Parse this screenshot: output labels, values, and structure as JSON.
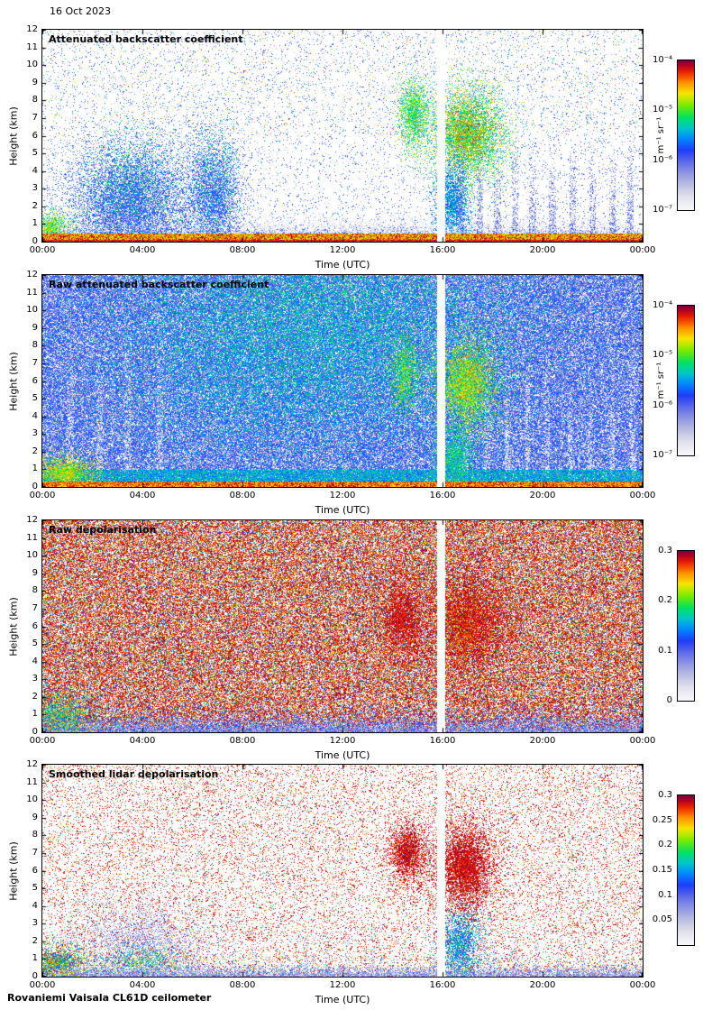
{
  "date_label": "16 Oct 2023",
  "footer": "Rovaniemi Vaisala CL61D ceilometer",
  "colormap": {
    "stops": [
      [
        0.0,
        "#f7f7fb"
      ],
      [
        0.08,
        "#e4e4ee"
      ],
      [
        0.18,
        "#b4b8e0"
      ],
      [
        0.3,
        "#6e78e6"
      ],
      [
        0.4,
        "#1e3cfa"
      ],
      [
        0.48,
        "#008cff"
      ],
      [
        0.55,
        "#00c8c8"
      ],
      [
        0.62,
        "#00e164"
      ],
      [
        0.7,
        "#78eb00"
      ],
      [
        0.78,
        "#f5e600"
      ],
      [
        0.85,
        "#ff9600"
      ],
      [
        0.92,
        "#f02800"
      ],
      [
        0.97,
        "#b4001e"
      ],
      [
        1.0,
        "#7d0046"
      ]
    ]
  },
  "chart_data": [
    {
      "type": "heatmap",
      "title": "Attenuated backscatter coefficient",
      "xlabel": "Time (UTC)",
      "ylabel": "Height (km)",
      "x_ticks": [
        "00:00",
        "04:00",
        "08:00",
        "12:00",
        "16:00",
        "20:00",
        "00:00"
      ],
      "y_ticks": [
        0,
        1,
        2,
        3,
        4,
        5,
        6,
        7,
        8,
        9,
        10,
        11,
        12
      ],
      "x_range_hours": [
        0,
        24
      ],
      "y_range_km": [
        0,
        12
      ],
      "gap_hours": [
        15.8,
        16.1
      ],
      "colorbar": {
        "scale": "log",
        "range": [
          1e-07,
          0.0001
        ],
        "unit": "m⁻¹ sr⁻¹",
        "ticks": [
          {
            "label": "10⁻⁴",
            "pos": 1
          },
          {
            "label": "10⁻⁵",
            "pos": 0.667
          },
          {
            "label": "10⁻⁶",
            "pos": 0.333
          },
          {
            "label": "10⁻⁷",
            "pos": 0
          }
        ]
      },
      "features": [
        {
          "kind": "noise",
          "density": 0.055,
          "v0": 0.16,
          "v1": 0.5,
          "h0": 0,
          "h1": 12,
          "t0": 0,
          "t1": 24
        },
        {
          "kind": "noise",
          "density": 0.012,
          "v0": 0.5,
          "v1": 0.95,
          "h0": 6,
          "h1": 12,
          "t0": 0,
          "t1": 24
        },
        {
          "kind": "band",
          "h0": 0,
          "h1": 1.5,
          "density": 0.9,
          "v0": 0.02,
          "v1": 0.14,
          "fade": true
        },
        {
          "kind": "band",
          "h0": 0,
          "h1": 0.9,
          "density": 0.5,
          "v0": 0.2,
          "v1": 0.4,
          "fade": true
        },
        {
          "kind": "blob",
          "t": 3.6,
          "h": 2.2,
          "st": 1.4,
          "sh": 1.9,
          "density": 0.8,
          "v0": 0.24,
          "v1": 0.5
        },
        {
          "kind": "blob",
          "t": 3.6,
          "h": 3.4,
          "st": 1.1,
          "sh": 1.6,
          "density": 0.15,
          "v0": 0.5,
          "v1": 0.7
        },
        {
          "kind": "blob",
          "t": 6.9,
          "h": 2.4,
          "st": 0.6,
          "sh": 2.0,
          "density": 0.75,
          "v0": 0.24,
          "v1": 0.5
        },
        {
          "kind": "blob",
          "t": 6.9,
          "h": 3.5,
          "st": 0.55,
          "sh": 1.7,
          "density": 0.12,
          "v0": 0.5,
          "v1": 0.68
        },
        {
          "kind": "blob",
          "t": 0.35,
          "h": 0.8,
          "st": 0.45,
          "sh": 0.45,
          "density": 0.9,
          "v0": 0.55,
          "v1": 0.8
        },
        {
          "kind": "blob",
          "t": 14.85,
          "h": 7.2,
          "st": 0.35,
          "sh": 1.1,
          "density": 0.95,
          "v0": 0.5,
          "v1": 0.78
        },
        {
          "kind": "blob",
          "t": 17.0,
          "h": 6.1,
          "st": 0.85,
          "sh": 1.5,
          "density": 0.97,
          "v0": 0.48,
          "v1": 0.8
        },
        {
          "kind": "blob",
          "t": 17.0,
          "h": 6.4,
          "st": 0.6,
          "sh": 1.0,
          "density": 0.3,
          "v0": 0.75,
          "v1": 0.95
        },
        {
          "kind": "blob",
          "t": 16.4,
          "h": 2.2,
          "st": 0.4,
          "sh": 1.3,
          "density": 0.9,
          "v0": 0.35,
          "v1": 0.6
        },
        {
          "kind": "streaks",
          "t_list": [
            16.7,
            17.5,
            18.2,
            18.9,
            19.6,
            20.4,
            21.2,
            22.0,
            22.8,
            23.5
          ],
          "tw": 0.13,
          "hmax": 6,
          "density": 0.5,
          "v0": 0.15,
          "v1": 0.4
        },
        {
          "kind": "band",
          "h0": 0,
          "h1": 0.45,
          "density": 1.0,
          "v0": 0.7,
          "v1": 1.0
        },
        {
          "kind": "band",
          "h0": 0,
          "h1": 0.1,
          "density": 1.0,
          "v0": 0.88,
          "v1": 1.0
        }
      ]
    },
    {
      "type": "heatmap",
      "title": "Raw attenuated backscatter coefficient",
      "xlabel": "Time (UTC)",
      "ylabel": "Height (km)",
      "x_ticks": [
        "00:00",
        "04:00",
        "08:00",
        "12:00",
        "16:00",
        "20:00",
        "00:00"
      ],
      "y_ticks": [
        0,
        1,
        2,
        3,
        4,
        5,
        6,
        7,
        8,
        9,
        10,
        11,
        12
      ],
      "x_range_hours": [
        0,
        24
      ],
      "y_range_km": [
        0,
        12
      ],
      "gap_hours": [
        15.8,
        16.1
      ],
      "colorbar": {
        "scale": "log",
        "range": [
          1e-07,
          0.0001
        ],
        "unit": "m⁻¹ sr⁻¹",
        "ticks": [
          {
            "label": "10⁻⁴",
            "pos": 1
          },
          {
            "label": "10⁻⁵",
            "pos": 0.667
          },
          {
            "label": "10⁻⁶",
            "pos": 0.333
          },
          {
            "label": "10⁻⁷",
            "pos": 0
          }
        ]
      },
      "features": [
        {
          "kind": "noise",
          "density": 0.78,
          "v0": 0.2,
          "v1": 0.48,
          "h0": 0,
          "h1": 12,
          "t0": 0,
          "t1": 24
        },
        {
          "kind": "blob",
          "t": 11,
          "h": 9.5,
          "st": 4.5,
          "sh": 3.2,
          "density": 0.45,
          "v0": 0.45,
          "v1": 0.66
        },
        {
          "kind": "blob",
          "t": 10,
          "h": 6,
          "st": 3.8,
          "sh": 2.6,
          "density": 0.25,
          "v0": 0.45,
          "v1": 0.6
        },
        {
          "kind": "streaks",
          "t_list": [
            1.1,
            2.3,
            3.4,
            4.7
          ],
          "tw": 0.12,
          "hmax": 10,
          "density": 0.45,
          "v0": 0.02,
          "v1": 0.1
        },
        {
          "kind": "streaks",
          "t_list": [
            16.9,
            17.8,
            18.6,
            19.4,
            20.2,
            21.1,
            21.9,
            22.8,
            23.6
          ],
          "tw": 0.1,
          "hmax": 9,
          "density": 0.5,
          "v0": 0.02,
          "v1": 0.1
        },
        {
          "kind": "band",
          "h0": 0.3,
          "h1": 0.95,
          "density": 0.85,
          "v0": 0.42,
          "v1": 0.62
        },
        {
          "kind": "blob",
          "t": 0.8,
          "h": 0.8,
          "st": 0.8,
          "sh": 0.55,
          "density": 1.0,
          "v0": 0.6,
          "v1": 0.85
        },
        {
          "kind": "blob",
          "t": 14.5,
          "h": 6.3,
          "st": 0.3,
          "sh": 1.2,
          "density": 0.9,
          "v0": 0.5,
          "v1": 0.78
        },
        {
          "kind": "blob",
          "t": 17.0,
          "h": 5.8,
          "st": 0.75,
          "sh": 1.5,
          "density": 1.0,
          "v0": 0.5,
          "v1": 0.8
        },
        {
          "kind": "blob",
          "t": 17.0,
          "h": 6.0,
          "st": 0.5,
          "sh": 1.0,
          "density": 0.35,
          "v0": 0.72,
          "v1": 0.9
        },
        {
          "kind": "blob",
          "t": 16.5,
          "h": 1.6,
          "st": 0.45,
          "sh": 1.1,
          "density": 1.0,
          "v0": 0.45,
          "v1": 0.7
        },
        {
          "kind": "band",
          "h0": 0,
          "h1": 0.32,
          "density": 1.0,
          "v0": 0.75,
          "v1": 1.0
        }
      ]
    },
    {
      "type": "heatmap",
      "title": "Raw depolarisation",
      "xlabel": "Time (UTC)",
      "ylabel": "Height (km)",
      "x_ticks": [
        "00:00",
        "04:00",
        "08:00",
        "12:00",
        "16:00",
        "20:00",
        "00:00"
      ],
      "y_ticks": [
        0,
        1,
        2,
        3,
        4,
        5,
        6,
        7,
        8,
        9,
        10,
        11,
        12
      ],
      "x_range_hours": [
        0,
        24
      ],
      "y_range_km": [
        0,
        12
      ],
      "gap_hours": [
        15.8,
        16.1
      ],
      "colorbar": {
        "scale": "linear",
        "range": [
          0,
          0.3
        ],
        "ticks": [
          {
            "label": "0.3",
            "pos": 1
          },
          {
            "label": "0.2",
            "pos": 0.667
          },
          {
            "label": "0.1",
            "pos": 0.333
          },
          {
            "label": "0",
            "pos": 0
          }
        ]
      },
      "features": [
        {
          "kind": "noise",
          "density": 0.62,
          "v0": 0.86,
          "v1": 1.0,
          "h0": 0,
          "h1": 12,
          "t0": 0,
          "t1": 24
        },
        {
          "kind": "noise",
          "density": 0.22,
          "v0": 0.05,
          "v1": 0.85,
          "h0": 0,
          "h1": 12,
          "t0": 0,
          "t1": 24
        },
        {
          "kind": "band",
          "h0": 0,
          "h1": 1.6,
          "density": 0.45,
          "v0": 0.18,
          "v1": 0.45,
          "fade": true
        },
        {
          "kind": "band",
          "h0": 0,
          "h1": 0.8,
          "density": 0.9,
          "v0": 0.12,
          "v1": 0.4,
          "fade": true
        },
        {
          "kind": "blob",
          "t": 0.7,
          "h": 0.9,
          "st": 0.8,
          "sh": 0.8,
          "density": 0.95,
          "v0": 0.3,
          "v1": 0.9
        },
        {
          "kind": "blob",
          "t": 14.4,
          "h": 6.5,
          "st": 0.5,
          "sh": 1.3,
          "density": 0.9,
          "v0": 0.9,
          "v1": 1.0
        },
        {
          "kind": "blob",
          "t": 17.0,
          "h": 6.2,
          "st": 0.85,
          "sh": 1.6,
          "density": 0.9,
          "v0": 0.9,
          "v1": 1.0
        },
        {
          "kind": "blob",
          "t": 16.8,
          "h": 6.0,
          "st": 0.6,
          "sh": 1.2,
          "density": 0.2,
          "v0": 0.7,
          "v1": 0.9
        }
      ]
    },
    {
      "type": "heatmap",
      "title": "Smoothed lidar depolarisation",
      "xlabel": "Time (UTC)",
      "ylabel": "Height (km)",
      "x_ticks": [
        "00:00",
        "04:00",
        "08:00",
        "12:00",
        "16:00",
        "20:00",
        "00:00"
      ],
      "y_ticks": [
        0,
        1,
        2,
        3,
        4,
        5,
        6,
        7,
        8,
        9,
        10,
        11,
        12
      ],
      "x_range_hours": [
        0,
        24
      ],
      "y_range_km": [
        0,
        12
      ],
      "gap_hours": [
        15.8,
        16.1
      ],
      "colorbar": {
        "scale": "linear",
        "range": [
          0,
          0.3
        ],
        "ticks": [
          {
            "label": "0.3",
            "pos": 1
          },
          {
            "label": "0.25",
            "pos": 0.833
          },
          {
            "label": "0.2",
            "pos": 0.667
          },
          {
            "label": "0.15",
            "pos": 0.5
          },
          {
            "label": "0.1",
            "pos": 0.333
          },
          {
            "label": "0.05",
            "pos": 0.167
          }
        ]
      },
      "features": [
        {
          "kind": "noise",
          "density": 0.12,
          "v0": 0.86,
          "v1": 1.0,
          "h0": 0,
          "h1": 12,
          "t0": 0,
          "t1": 24
        },
        {
          "kind": "noise",
          "density": 0.02,
          "v0": 0.1,
          "v1": 0.8,
          "h0": 0,
          "h1": 12,
          "t0": 0,
          "t1": 24
        },
        {
          "kind": "blob",
          "t": 4.0,
          "h": 1.6,
          "st": 1.5,
          "sh": 1.4,
          "density": 0.5,
          "v0": 0.08,
          "v1": 0.35
        },
        {
          "kind": "blob",
          "t": 4.0,
          "h": 0.8,
          "st": 0.8,
          "sh": 0.5,
          "density": 0.45,
          "v0": 0.4,
          "v1": 0.75
        },
        {
          "kind": "streaks",
          "t_list": [
            7.6,
            8.5,
            9.6,
            10.5,
            11.4,
            12.2,
            13.2,
            18.0,
            18.9,
            19.8,
            20.7,
            21.6,
            22.5,
            23.3
          ],
          "tw": 0.09,
          "hmax": 3,
          "density": 0.3,
          "v0": 0.08,
          "v1": 0.3
        },
        {
          "kind": "noise",
          "density": 0.06,
          "v0": 0.3,
          "v1": 0.9,
          "h0": 0,
          "h1": 1.2,
          "t0": 0,
          "t1": 24
        },
        {
          "kind": "band",
          "h0": 0,
          "h1": 0.7,
          "density": 0.9,
          "v0": 0.12,
          "v1": 0.35,
          "fade": true
        },
        {
          "kind": "blob",
          "t": 0.6,
          "h": 0.8,
          "st": 0.7,
          "sh": 0.6,
          "density": 1.0,
          "v0": 0.3,
          "v1": 0.95
        },
        {
          "kind": "blob",
          "t": 14.6,
          "h": 7.0,
          "st": 0.45,
          "sh": 1.0,
          "density": 1.0,
          "v0": 0.9,
          "v1": 1.0
        },
        {
          "kind": "blob",
          "t": 16.9,
          "h": 6.2,
          "st": 0.7,
          "sh": 1.5,
          "density": 1.0,
          "v0": 0.9,
          "v1": 1.0
        },
        {
          "kind": "blob",
          "t": 16.7,
          "h": 1.8,
          "st": 0.5,
          "sh": 1.2,
          "density": 0.8,
          "v0": 0.3,
          "v1": 0.65
        }
      ]
    }
  ]
}
